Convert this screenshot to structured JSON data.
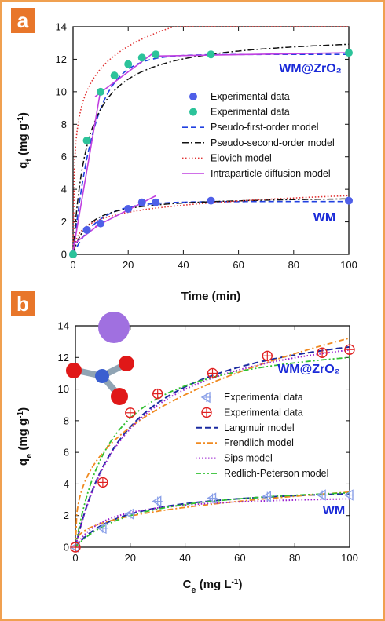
{
  "colors": {
    "frame": "#f0a050",
    "panel_badge": "#e8762a",
    "wm_label": "#1a2ad8",
    "blue_marker": "#4f5fe8",
    "teal_marker": "#2cc39a",
    "pfo": "#2040e0",
    "pso": "#111111",
    "elovich": "#e03030",
    "ipd": "#c040e0",
    "cross_marker": "#8aa0e8",
    "circle_marker": "#e02020",
    "langmuir": "#1a2aa0",
    "frendlich": "#f08a20",
    "sips": "#9a20d0",
    "rp": "#30c030",
    "molecule_sphere": "#a070e0",
    "molecule_red": "#e01818",
    "molecule_grey": "#90a4b4"
  },
  "chart_data": [
    {
      "panel": "a",
      "type": "scatter",
      "xlabel": "Time (min)",
      "ylabel": "qt (mg g-1)",
      "ylabel_parts": {
        "main": "q",
        "sub": "t",
        "rest": " (mg g",
        "sup": "-1",
        "close": ")"
      },
      "xlim": [
        0,
        100
      ],
      "ylim": [
        0,
        14
      ],
      "xticks": [
        0,
        20,
        40,
        60,
        80,
        100
      ],
      "yticks": [
        0,
        2,
        4,
        6,
        8,
        10,
        12,
        14
      ],
      "legend_position": "center-right",
      "labels": {
        "upper": "WM@ZrO₂",
        "lower": "WM"
      },
      "legend": [
        {
          "label": "Experimental data",
          "kind": "marker-blue"
        },
        {
          "label": "Experimental data",
          "kind": "marker-teal"
        },
        {
          "label": "Pseudo-first-order model",
          "kind": "dashed-blue"
        },
        {
          "label": "Pseudo-second-order model",
          "kind": "dashdot-black"
        },
        {
          "label": "Elovich model",
          "kind": "dotted-red"
        },
        {
          "label": "Intraparticle diffusion model",
          "kind": "solid-magenta"
        }
      ],
      "series": [
        {
          "kind": "marker-blue",
          "x": [
            0,
            5,
            10,
            20,
            25,
            30,
            50,
            100
          ],
          "y": [
            0,
            1.5,
            1.9,
            2.8,
            3.2,
            3.2,
            3.3,
            3.3
          ]
        },
        {
          "kind": "marker-teal",
          "x": [
            0,
            5,
            10,
            15,
            20,
            25,
            30,
            50,
            100
          ],
          "y": [
            0,
            7,
            10,
            11,
            11.7,
            12.1,
            12.3,
            12.3,
            12.4
          ]
        }
      ]
    },
    {
      "panel": "b",
      "type": "scatter",
      "xlabel": "Ce (mg L-1)",
      "xlabel_parts": {
        "main": "C",
        "sub": "e",
        "rest": " (mg L",
        "sup": "-1",
        "close": ")"
      },
      "ylabel": "qe (mg g-1)",
      "ylabel_parts": {
        "main": "q",
        "sub": "e",
        "rest": " (mg g",
        "sup": "-1",
        "close": ")"
      },
      "xlim": [
        0,
        100
      ],
      "ylim": [
        0,
        14
      ],
      "xticks": [
        0,
        20,
        40,
        60,
        80,
        100
      ],
      "yticks": [
        0,
        2,
        4,
        6,
        8,
        10,
        12,
        14
      ],
      "legend_position": "center-right",
      "labels": {
        "upper": "WM@ZrO₂",
        "lower": "WM"
      },
      "legend": [
        {
          "label": "Experimental data",
          "kind": "marker-cross"
        },
        {
          "label": "Experimental data",
          "kind": "marker-circle"
        },
        {
          "label": "Langmuir model",
          "kind": "dashed-navy"
        },
        {
          "label": "Frendlich model",
          "kind": "dashdot-orange"
        },
        {
          "label": "Sips model",
          "kind": "dotted-purple"
        },
        {
          "label": "Redlich-Peterson model",
          "kind": "dashdotdot-green"
        }
      ],
      "series": [
        {
          "kind": "marker-cross",
          "x": [
            0,
            10,
            20,
            30,
            50,
            70,
            90,
            100
          ],
          "y": [
            0,
            1.2,
            2.1,
            2.9,
            3.1,
            3.2,
            3.3,
            3.3
          ]
        },
        {
          "kind": "marker-circle",
          "x": [
            0,
            10,
            20,
            30,
            50,
            70,
            90,
            100
          ],
          "y": [
            0,
            4.1,
            8.5,
            9.7,
            11.0,
            12.1,
            12.3,
            12.5
          ]
        }
      ]
    }
  ]
}
